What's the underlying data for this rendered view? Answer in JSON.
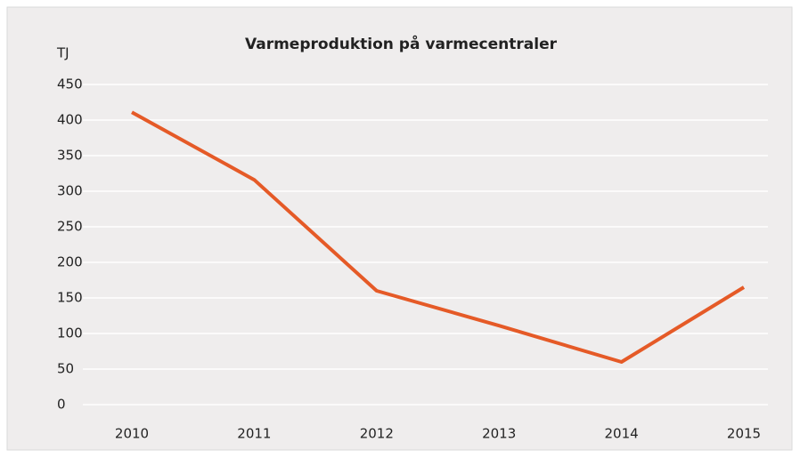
{
  "chart_data": {
    "type": "line",
    "title": "Varmeproduktion på varmecentraler",
    "y_label": "TJ",
    "categories": [
      "2010",
      "2011",
      "2012",
      "2013",
      "2014",
      "2015"
    ],
    "series": [
      {
        "name": "Varmeproduktion",
        "color": "#e55a27",
        "values": [
          411,
          316,
          160,
          111,
          60,
          165
        ]
      }
    ],
    "ylim": [
      0,
      450
    ],
    "yticks": [
      0,
      50,
      100,
      150,
      200,
      250,
      300,
      350,
      400,
      450
    ],
    "grid": true
  }
}
